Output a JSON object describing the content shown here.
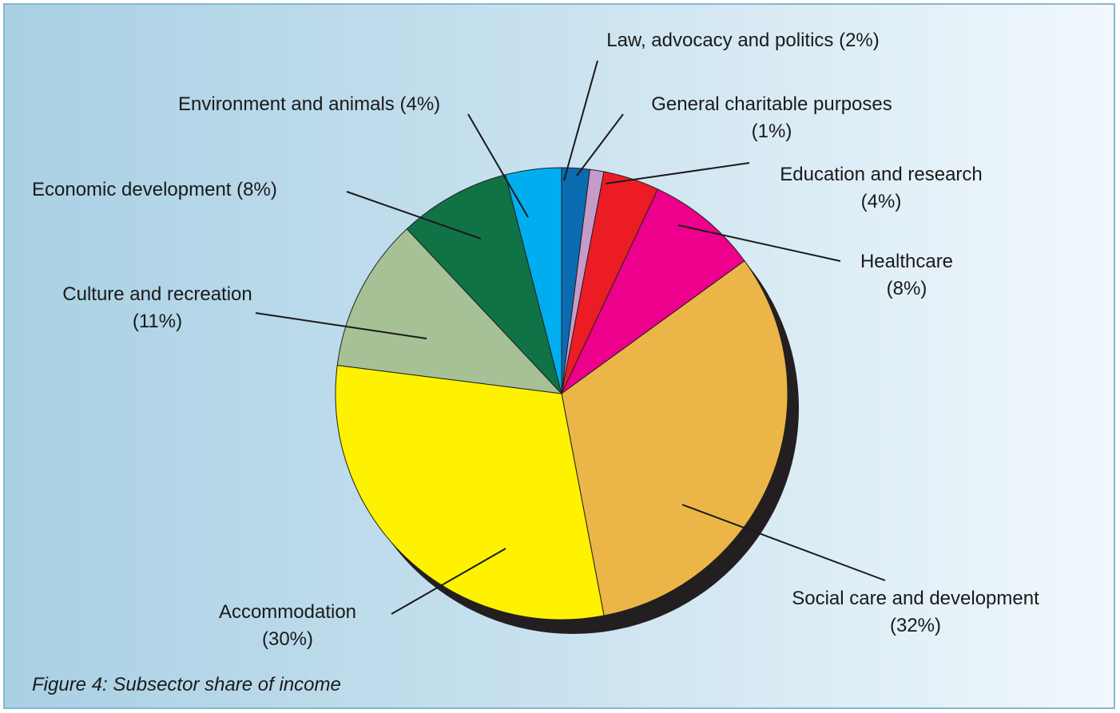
{
  "caption": "Figure 4: Subsector share of income",
  "chart_data": {
    "type": "pie",
    "title": "",
    "slices": [
      {
        "name": "Law, advocacy and politics",
        "value": 2,
        "label_lines": [
          "Law, advocacy and politics (2%)"
        ],
        "color": "#0a6bb1"
      },
      {
        "name": "General charitable purposes",
        "value": 1,
        "label_lines": [
          "General charitable purposes",
          "(1%)"
        ],
        "color": "#c79bc8"
      },
      {
        "name": "Education and research",
        "value": 4,
        "label_lines": [
          "Education and research",
          "(4%)"
        ],
        "color": "#ec1c24"
      },
      {
        "name": "Healthcare",
        "value": 8,
        "label_lines": [
          "Healthcare",
          "(8%)"
        ],
        "color": "#ec008c"
      },
      {
        "name": "Social care and development",
        "value": 32,
        "label_lines": [
          "Social care and development",
          "(32%)"
        ],
        "color": "#ebb647"
      },
      {
        "name": "Accommodation",
        "value": 30,
        "label_lines": [
          "Accommodation",
          "(30%)"
        ],
        "color": "#fff200"
      },
      {
        "name": "Culture and recreation",
        "value": 11,
        "label_lines": [
          "Culture and recreation",
          "(11%)"
        ],
        "color": "#a6c196"
      },
      {
        "name": "Economic development",
        "value": 8,
        "label_lines": [
          "Economic development (8%)"
        ],
        "color": "#0f7346"
      },
      {
        "name": "Environment and animals",
        "value": 4,
        "label_lines": [
          "Environment and animals (4%)"
        ],
        "color": "#00aeef"
      }
    ]
  }
}
